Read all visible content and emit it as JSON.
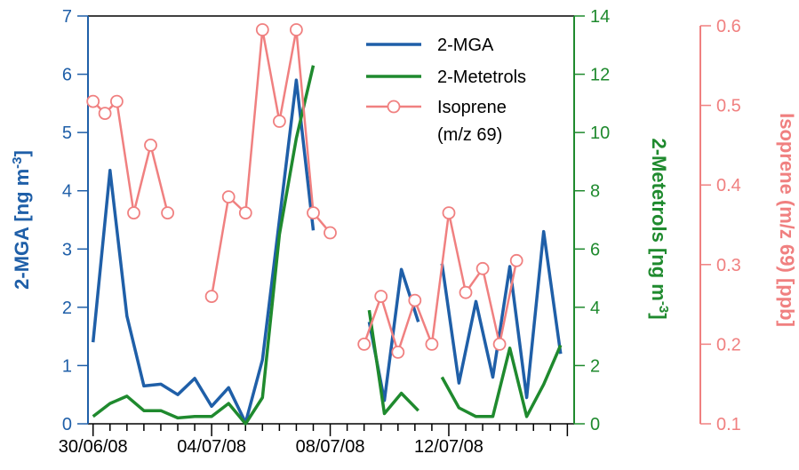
{
  "chart_data": {
    "type": "line",
    "x_axis": {
      "tick_labels": [
        "30/06/08",
        "04/07/08",
        "08/07/08",
        "12/07/08"
      ]
    },
    "y_axes": {
      "left": {
        "label": "2-MGA [ng m-3]",
        "label_main": "2-MGA [ng m",
        "label_sup": "-3",
        "label_end": "]",
        "ylim": [
          0,
          7
        ],
        "ticks": [
          "0",
          "1",
          "2",
          "3",
          "4",
          "5",
          "6",
          "7"
        ],
        "color": "#1f5fa8"
      },
      "right": {
        "label": "2-Metetrols [ng m-3]",
        "label_main": "2-Metetrols [ng m",
        "label_sup": "-3",
        "label_end": "]",
        "ylim": [
          0,
          14
        ],
        "ticks": [
          "0",
          "2",
          "4",
          "6",
          "8",
          "10",
          "12",
          "14"
        ],
        "color": "#1f8a2e"
      },
      "far_right": {
        "label": "Isoprene (m/z 69) [ppb]",
        "ylim": [
          0.1,
          0.6
        ],
        "ticks": [
          "0.1",
          "0.2",
          "0.3",
          "0.4",
          "0.5",
          "0.6"
        ],
        "color": "#f08080"
      }
    },
    "series": [
      {
        "name": "2-MGA",
        "axis": "left",
        "color": "#1f5fa8",
        "segments": [
          [
            [
              0.3,
              1.4
            ],
            [
              1.3,
              4.35
            ],
            [
              2.3,
              1.85
            ],
            [
              3.3,
              0.65
            ],
            [
              4.3,
              0.68
            ],
            [
              5.3,
              0.5
            ],
            [
              6.3,
              0.78
            ],
            [
              7.3,
              0.3
            ],
            [
              8.3,
              0.62
            ],
            [
              9.3,
              0.02
            ],
            [
              10.3,
              1.1
            ],
            [
              11.3,
              3.5
            ],
            [
              12.3,
              5.9
            ],
            [
              13.3,
              3.32
            ]
          ],
          [
            [
              16.6,
              1.75
            ],
            [
              17.5,
              0.4
            ],
            [
              18.5,
              2.65
            ],
            [
              19.5,
              1.75
            ]
          ],
          [
            [
              20.9,
              2.75
            ],
            [
              21.9,
              0.7
            ],
            [
              22.9,
              2.1
            ],
            [
              23.9,
              0.8
            ],
            [
              24.9,
              2.7
            ],
            [
              25.9,
              0.45
            ],
            [
              26.9,
              3.3
            ],
            [
              27.9,
              1.2
            ]
          ]
        ]
      },
      {
        "name": "2-Metetrols",
        "axis": "right",
        "color": "#1f8a2e",
        "segments": [
          [
            [
              0.3,
              0.25
            ],
            [
              1.3,
              0.7
            ],
            [
              2.3,
              0.95
            ],
            [
              3.3,
              0.45
            ],
            [
              4.3,
              0.45
            ],
            [
              5.3,
              0.2
            ],
            [
              6.3,
              0.25
            ],
            [
              7.3,
              0.25
            ],
            [
              8.3,
              0.7
            ],
            [
              9.3,
              0.0
            ],
            [
              10.3,
              0.9
            ],
            [
              11.3,
              6.5
            ],
            [
              12.3,
              9.8
            ],
            [
              13.3,
              12.3
            ]
          ],
          [
            [
              16.6,
              3.9
            ],
            [
              17.5,
              0.35
            ],
            [
              18.5,
              1.05
            ],
            [
              19.5,
              0.45
            ]
          ],
          [
            [
              20.9,
              1.6
            ],
            [
              21.9,
              0.55
            ],
            [
              22.9,
              0.25
            ],
            [
              23.9,
              0.25
            ],
            [
              24.9,
              2.6
            ],
            [
              25.9,
              0.25
            ],
            [
              26.9,
              1.35
            ],
            [
              27.9,
              2.7
            ]
          ]
        ]
      },
      {
        "name": "Isoprene",
        "name_line2": "(m/z 69)",
        "axis": "far_right",
        "color": "#f08080",
        "segments": [
          [
            [
              0.3,
              0.505
            ],
            [
              1.0,
              0.49
            ],
            [
              1.7,
              0.505
            ],
            [
              2.7,
              0.365
            ],
            [
              3.7,
              0.45
            ],
            [
              4.7,
              0.365
            ]
          ],
          [
            [
              7.3,
              0.26
            ],
            [
              8.3,
              0.385
            ],
            [
              9.3,
              0.365
            ],
            [
              10.3,
              0.595
            ],
            [
              11.3,
              0.48
            ],
            [
              12.3,
              0.595
            ],
            [
              13.3,
              0.365
            ],
            [
              14.3,
              0.34
            ]
          ],
          [
            [
              16.3,
              0.2
            ],
            [
              17.3,
              0.26
            ],
            [
              18.3,
              0.19
            ],
            [
              19.3,
              0.255
            ],
            [
              20.3,
              0.2
            ],
            [
              21.3,
              0.365
            ],
            [
              22.3,
              0.265
            ],
            [
              23.3,
              0.295
            ],
            [
              24.3,
              0.2
            ],
            [
              25.3,
              0.305
            ]
          ]
        ]
      }
    ],
    "legend": {
      "placement": "top-center"
    }
  }
}
